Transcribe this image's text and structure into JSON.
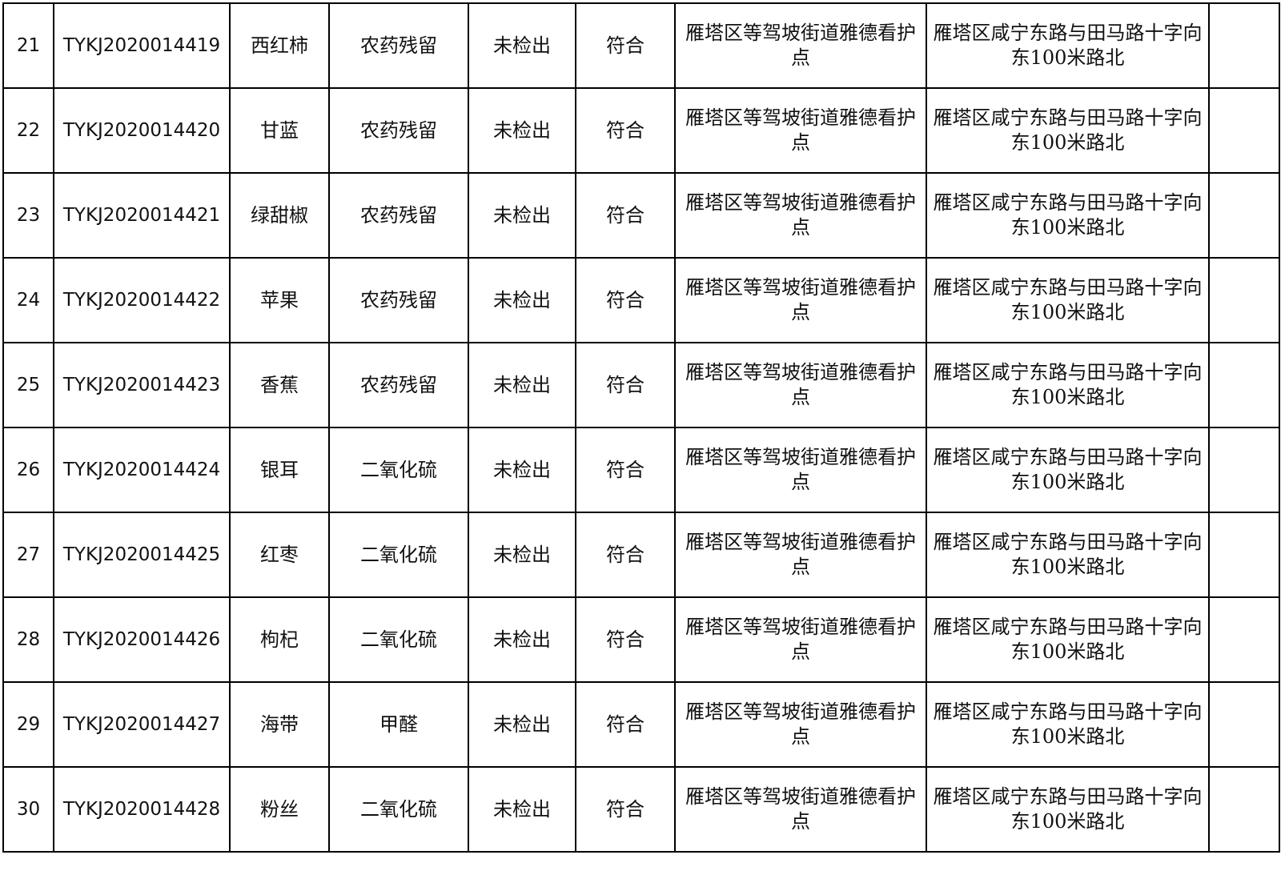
{
  "rows": [
    {
      "no": "21",
      "code": "TYKJ2020014419",
      "sample": "西红柿",
      "item": "农药残留",
      "result": "未检出",
      "verdict": "符合",
      "unit": "雁塔区等驾坡街道雅德看护点",
      "address": "雁塔区咸宁东路与田马路十字向东100米路北",
      "remark": ""
    },
    {
      "no": "22",
      "code": "TYKJ2020014420",
      "sample": "甘蓝",
      "item": "农药残留",
      "result": "未检出",
      "verdict": "符合",
      "unit": "雁塔区等驾坡街道雅德看护点",
      "address": "雁塔区咸宁东路与田马路十字向东100米路北",
      "remark": ""
    },
    {
      "no": "23",
      "code": "TYKJ2020014421",
      "sample": "绿甜椒",
      "item": "农药残留",
      "result": "未检出",
      "verdict": "符合",
      "unit": "雁塔区等驾坡街道雅德看护点",
      "address": "雁塔区咸宁东路与田马路十字向东100米路北",
      "remark": ""
    },
    {
      "no": "24",
      "code": "TYKJ2020014422",
      "sample": "苹果",
      "item": "农药残留",
      "result": "未检出",
      "verdict": "符合",
      "unit": "雁塔区等驾坡街道雅德看护点",
      "address": "雁塔区咸宁东路与田马路十字向东100米路北",
      "remark": ""
    },
    {
      "no": "25",
      "code": "TYKJ2020014423",
      "sample": "香蕉",
      "item": "农药残留",
      "result": "未检出",
      "verdict": "符合",
      "unit": "雁塔区等驾坡街道雅德看护点",
      "address": "雁塔区咸宁东路与田马路十字向东100米路北",
      "remark": ""
    },
    {
      "no": "26",
      "code": "TYKJ2020014424",
      "sample": "银耳",
      "item": "二氧化硫",
      "result": "未检出",
      "verdict": "符合",
      "unit": "雁塔区等驾坡街道雅德看护点",
      "address": "雁塔区咸宁东路与田马路十字向东100米路北",
      "remark": ""
    },
    {
      "no": "27",
      "code": "TYKJ2020014425",
      "sample": "红枣",
      "item": "二氧化硫",
      "result": "未检出",
      "verdict": "符合",
      "unit": "雁塔区等驾坡街道雅德看护点",
      "address": "雁塔区咸宁东路与田马路十字向东100米路北",
      "remark": ""
    },
    {
      "no": "28",
      "code": "TYKJ2020014426",
      "sample": "枸杞",
      "item": "二氧化硫",
      "result": "未检出",
      "verdict": "符合",
      "unit": "雁塔区等驾坡街道雅德看护点",
      "address": "雁塔区咸宁东路与田马路十字向东100米路北",
      "remark": ""
    },
    {
      "no": "29",
      "code": "TYKJ2020014427",
      "sample": "海带",
      "item": "甲醛",
      "result": "未检出",
      "verdict": "符合",
      "unit": "雁塔区等驾坡街道雅德看护点",
      "address": "雁塔区咸宁东路与田马路十字向东100米路北",
      "remark": ""
    },
    {
      "no": "30",
      "code": "TYKJ2020014428",
      "sample": "粉丝",
      "item": "二氧化硫",
      "result": "未检出",
      "verdict": "符合",
      "unit": "雁塔区等驾坡街道雅德看护点",
      "address": "雁塔区咸宁东路与田马路十字向东100米路北",
      "remark": ""
    }
  ]
}
